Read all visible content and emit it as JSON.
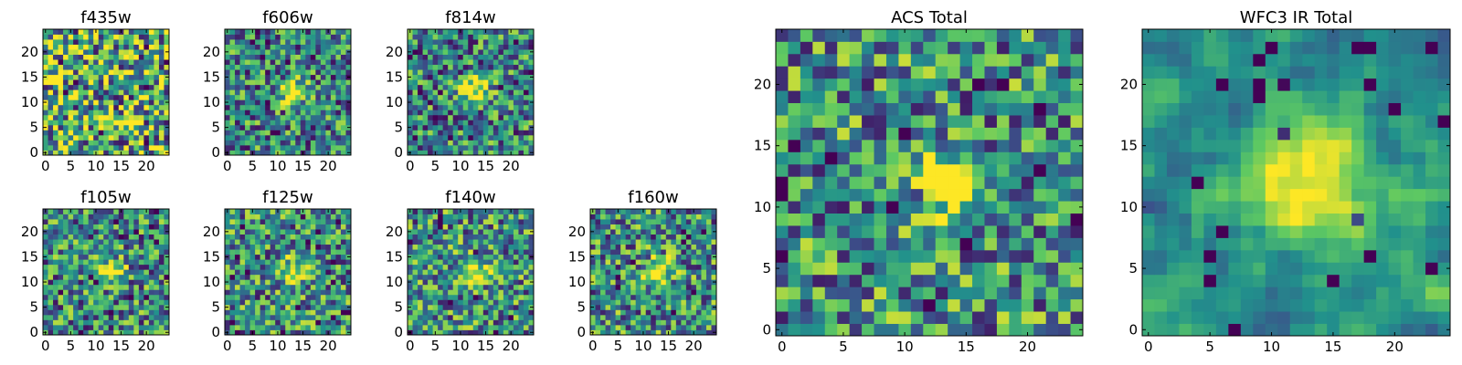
{
  "figure": {
    "background": "#ffffff"
  },
  "colormap": {
    "name": "viridis",
    "stops": [
      "#440154",
      "#3b528b",
      "#21918c",
      "#5ec962",
      "#fde725"
    ]
  },
  "chart_data": [
    {
      "type": "heatmap",
      "title": "f435w",
      "grid_size": 25,
      "peak": null,
      "noise": "high",
      "level": 0.62,
      "xticks": [
        "0",
        "5",
        "10",
        "15",
        "20"
      ],
      "yticks": [
        "0",
        "5",
        "10",
        "15",
        "20"
      ],
      "xlim": [
        0,
        25
      ],
      "ylim": [
        0,
        25
      ]
    },
    {
      "type": "heatmap",
      "title": "f606w",
      "grid_size": 25,
      "peak": [
        13,
        12
      ],
      "noise": "medium",
      "level": 0.45,
      "xticks": [
        "0",
        "5",
        "10",
        "15",
        "20"
      ],
      "yticks": [
        "0",
        "5",
        "10",
        "15",
        "20"
      ],
      "xlim": [
        0,
        25
      ],
      "ylim": [
        0,
        25
      ]
    },
    {
      "type": "heatmap",
      "title": "f814w",
      "grid_size": 25,
      "peak": [
        13,
        12
      ],
      "noise": "medium",
      "level": 0.45,
      "xticks": [
        "0",
        "5",
        "10",
        "15",
        "20"
      ],
      "yticks": [
        "0",
        "5",
        "10",
        "15",
        "20"
      ],
      "xlim": [
        0,
        25
      ],
      "ylim": [
        0,
        25
      ]
    },
    {
      "type": "heatmap",
      "title": "f105w",
      "grid_size": 25,
      "peak": [
        13,
        12
      ],
      "noise": "medium",
      "level": 0.48,
      "xticks": [
        "0",
        "5",
        "10",
        "15",
        "20"
      ],
      "yticks": [
        "0",
        "5",
        "10",
        "15",
        "20"
      ],
      "xlim": [
        0,
        25
      ],
      "ylim": [
        0,
        25
      ]
    },
    {
      "type": "heatmap",
      "title": "f125w",
      "grid_size": 25,
      "peak": [
        13,
        12
      ],
      "noise": "medium",
      "level": 0.5,
      "xticks": [
        "0",
        "5",
        "10",
        "15",
        "20"
      ],
      "yticks": [
        "0",
        "5",
        "10",
        "15",
        "20"
      ],
      "xlim": [
        0,
        25
      ],
      "ylim": [
        0,
        25
      ]
    },
    {
      "type": "heatmap",
      "title": "f140w",
      "grid_size": 25,
      "peak": [
        13,
        12
      ],
      "noise": "medium",
      "level": 0.5,
      "xticks": [
        "0",
        "5",
        "10",
        "15",
        "20"
      ],
      "yticks": [
        "0",
        "5",
        "10",
        "15",
        "20"
      ],
      "xlim": [
        0,
        25
      ],
      "ylim": [
        0,
        25
      ]
    },
    {
      "type": "heatmap",
      "title": "f160w",
      "grid_size": 25,
      "peak": [
        13,
        12
      ],
      "noise": "medium",
      "level": 0.5,
      "xticks": [
        "0",
        "5",
        "10",
        "15",
        "20"
      ],
      "yticks": [
        "0",
        "5",
        "10",
        "15",
        "20"
      ],
      "xlim": [
        0,
        25
      ],
      "ylim": [
        0,
        25
      ]
    },
    {
      "type": "heatmap",
      "title": "ACS Total",
      "grid_size": 25,
      "peak": [
        13,
        12
      ],
      "noise": "medium",
      "level": 0.5,
      "xticks": [
        "0",
        "5",
        "10",
        "15",
        "20"
      ],
      "yticks": [
        "0",
        "5",
        "10",
        "15",
        "20"
      ],
      "xlim": [
        0,
        25
      ],
      "ylim": [
        0,
        25
      ]
    },
    {
      "type": "heatmap",
      "title": "WFC3 IR Total",
      "grid_size": 25,
      "peak": [
        13,
        12
      ],
      "noise": "low",
      "level": 0.5,
      "xticks": [
        "0",
        "5",
        "10",
        "15",
        "20"
      ],
      "yticks": [
        "0",
        "5",
        "10",
        "15",
        "20"
      ],
      "xlim": [
        0,
        25
      ],
      "ylim": [
        0,
        25
      ]
    }
  ]
}
